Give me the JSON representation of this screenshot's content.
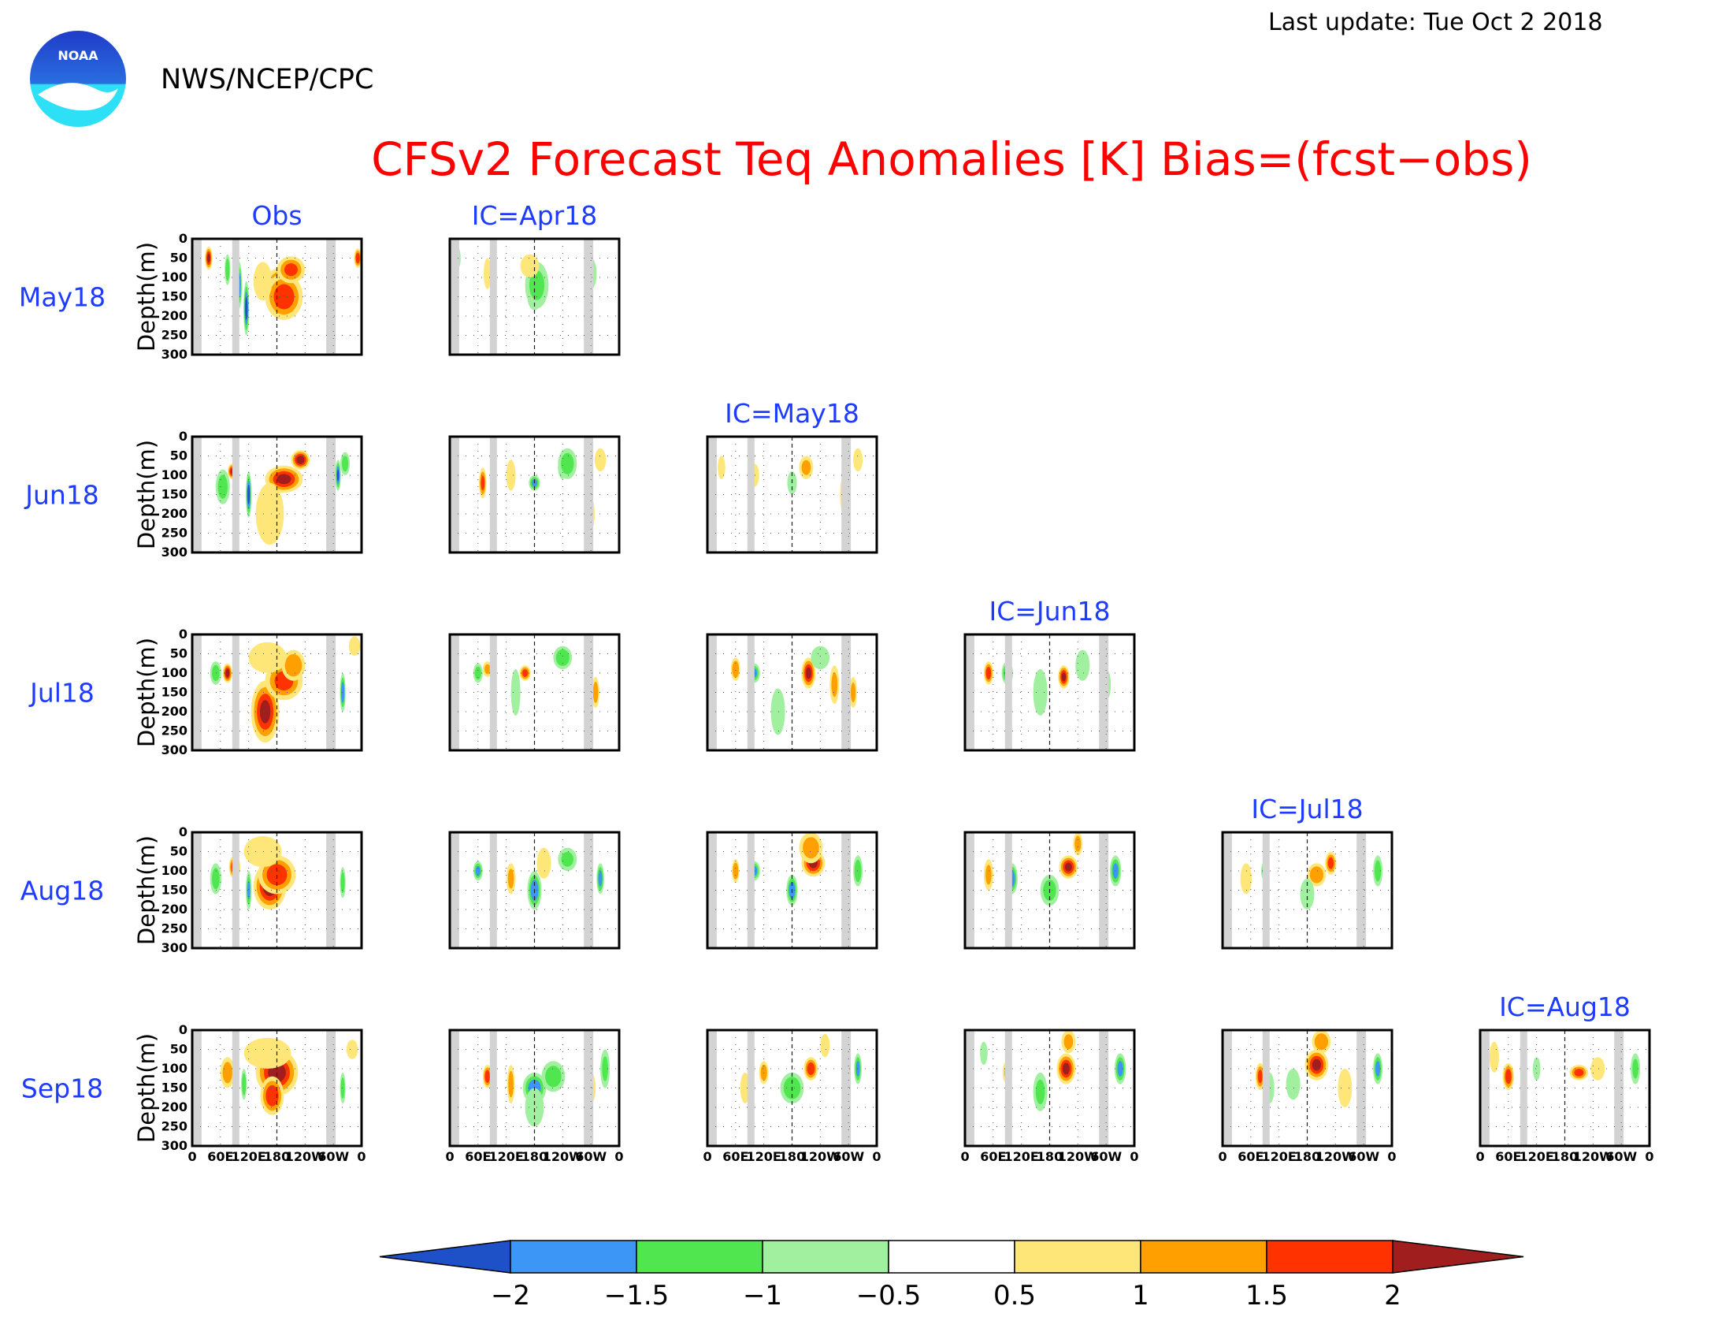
{
  "header": {
    "last_update": "Last update: Tue Oct 2 2018",
    "agency": "NWS/NCEP/CPC",
    "logo_text": "NOAA"
  },
  "colors": {
    "title": "#ff0000",
    "panel_label": "#1e3cff",
    "missing": "#d3d3d3",
    "dotted_grid": "#555555"
  },
  "chart_data": {
    "type": "heatmap",
    "title": "CFSv2 Forecast Teq Anomalies [K] Bias=(fcst−obs)",
    "ylabel": "Depth(m)",
    "xticks": [
      "0",
      "60E",
      "120E",
      "180",
      "120W",
      "60W",
      "0"
    ],
    "yticks": [
      "0",
      "50",
      "100",
      "150",
      "200",
      "250",
      "300"
    ],
    "ylim": [
      0,
      300
    ],
    "row_labels": [
      "May18",
      "Jun18",
      "Jul18",
      "Aug18",
      "Sep18"
    ],
    "column_headers": [
      "Obs",
      "IC=Apr18",
      "IC=May18",
      "IC=Jun18",
      "IC=Jul18",
      "IC=Aug18"
    ],
    "legend": {
      "tick_labels": [
        "−2",
        "−1.5",
        "−1",
        "−0.5",
        "0.5",
        "1",
        "1.5",
        "2"
      ],
      "levels": [
        -2,
        -1.5,
        -1,
        -0.5,
        0.5,
        1,
        1.5,
        2
      ],
      "colors": [
        "#1e50c8",
        "#3c96f5",
        "#50e650",
        "#a0f0a0",
        "#ffffff",
        "#ffe678",
        "#ffa000",
        "#ff3200",
        "#a01e1e"
      ]
    },
    "features": {
      "Obs|May18": [
        [
          185,
          130,
          2.2,
          30,
          55
        ],
        [
          195,
          150,
          1.8,
          40,
          60
        ],
        [
          210,
          80,
          1.5,
          30,
          35
        ],
        [
          100,
          120,
          -1.8,
          6,
          60
        ],
        [
          115,
          180,
          -2.2,
          6,
          70
        ],
        [
          35,
          50,
          2.0,
          8,
          30
        ],
        [
          352,
          50,
          1.8,
          8,
          25
        ],
        [
          75,
          80,
          -1.4,
          6,
          40
        ],
        [
          150,
          110,
          0.9,
          20,
          50
        ]
      ],
      "Obs|Jun18": [
        [
          195,
          110,
          2.0,
          40,
          35
        ],
        [
          230,
          60,
          2.2,
          20,
          25
        ],
        [
          120,
          150,
          -2.2,
          6,
          60
        ],
        [
          85,
          90,
          2.0,
          10,
          20
        ],
        [
          165,
          200,
          0.8,
          30,
          80
        ],
        [
          310,
          100,
          -2.0,
          6,
          40
        ],
        [
          325,
          70,
          -1.2,
          10,
          30
        ],
        [
          65,
          130,
          -1.2,
          15,
          45
        ]
      ],
      "Obs|Jul18": [
        [
          155,
          200,
          2.0,
          30,
          80
        ],
        [
          195,
          120,
          1.6,
          40,
          50
        ],
        [
          215,
          80,
          1.4,
          25,
          40
        ],
        [
          75,
          100,
          2.2,
          10,
          25
        ],
        [
          50,
          100,
          -1.2,
          12,
          30
        ],
        [
          320,
          150,
          -1.8,
          6,
          50
        ],
        [
          160,
          60,
          0.8,
          40,
          40
        ],
        [
          345,
          30,
          0.8,
          12,
          25
        ]
      ],
      "Obs|Aug18": [
        [
          165,
          140,
          2.2,
          35,
          60
        ],
        [
          180,
          110,
          1.8,
          40,
          50
        ],
        [
          90,
          90,
          2.2,
          12,
          30
        ],
        [
          120,
          150,
          -1.5,
          6,
          50
        ],
        [
          50,
          120,
          -1.2,
          12,
          40
        ],
        [
          320,
          130,
          -1.2,
          6,
          40
        ],
        [
          150,
          50,
          0.8,
          40,
          40
        ]
      ],
      "Obs|Sep18": [
        [
          180,
          110,
          2.2,
          45,
          60
        ],
        [
          170,
          170,
          1.8,
          25,
          50
        ],
        [
          75,
          110,
          1.2,
          15,
          40
        ],
        [
          110,
          140,
          -1.4,
          6,
          40
        ],
        [
          320,
          150,
          -1.2,
          6,
          40
        ],
        [
          160,
          60,
          0.9,
          50,
          40
        ],
        [
          340,
          50,
          0.8,
          12,
          25
        ]
      ],
      "IC=Apr18|May18": [
        [
          180,
          150,
          -1.8,
          15,
          35
        ],
        [
          185,
          120,
          -1.0,
          25,
          60
        ],
        [
          80,
          90,
          0.8,
          8,
          40
        ],
        [
          300,
          90,
          -0.8,
          12,
          40
        ],
        [
          170,
          70,
          0.7,
          20,
          30
        ],
        [
          15,
          50,
          -0.8,
          8,
          30
        ]
      ],
      "IC=Apr18|Jun18": [
        [
          180,
          120,
          -1.6,
          12,
          20
        ],
        [
          240,
          80,
          -1.8,
          10,
          30
        ],
        [
          250,
          70,
          -1.2,
          20,
          40
        ],
        [
          70,
          120,
          1.5,
          8,
          40
        ],
        [
          300,
          200,
          0.8,
          8,
          40
        ],
        [
          320,
          60,
          0.9,
          12,
          30
        ],
        [
          130,
          100,
          0.8,
          10,
          40
        ]
      ],
      "IC=Apr18|Jul18": [
        [
          240,
          60,
          -1.4,
          20,
          30
        ],
        [
          160,
          100,
          1.6,
          12,
          20
        ],
        [
          60,
          100,
          -1.2,
          10,
          25
        ],
        [
          310,
          150,
          1.2,
          8,
          40
        ],
        [
          140,
          150,
          -0.8,
          10,
          60
        ],
        [
          80,
          90,
          1.0,
          10,
          20
        ]
      ],
      "IC=Apr18|Aug18": [
        [
          180,
          150,
          -1.8,
          15,
          50
        ],
        [
          60,
          100,
          -1.6,
          10,
          25
        ],
        [
          250,
          70,
          -1.0,
          20,
          30
        ],
        [
          320,
          120,
          -1.6,
          8,
          40
        ],
        [
          130,
          120,
          1.0,
          10,
          40
        ],
        [
          200,
          80,
          0.8,
          15,
          40
        ]
      ],
      "IC=Apr18|Sep18": [
        [
          180,
          150,
          -1.8,
          25,
          40
        ],
        [
          220,
          120,
          -1.2,
          25,
          40
        ],
        [
          80,
          120,
          1.8,
          10,
          30
        ],
        [
          130,
          140,
          1.2,
          8,
          50
        ],
        [
          300,
          150,
          0.8,
          10,
          40
        ],
        [
          330,
          100,
          -1.0,
          10,
          50
        ],
        [
          180,
          200,
          -0.8,
          20,
          50
        ]
      ],
      "IC=May18|Jun18": [
        [
          100,
          100,
          0.7,
          10,
          30
        ],
        [
          180,
          120,
          -0.8,
          10,
          30
        ],
        [
          210,
          80,
          1.0,
          15,
          30
        ],
        [
          290,
          150,
          0.7,
          8,
          50
        ],
        [
          30,
          80,
          0.8,
          8,
          30
        ],
        [
          320,
          60,
          0.7,
          10,
          30
        ]
      ],
      "IC=May18|Jul18": [
        [
          215,
          100,
          2.0,
          15,
          40
        ],
        [
          100,
          100,
          -1.5,
          12,
          25
        ],
        [
          60,
          90,
          1.4,
          10,
          30
        ],
        [
          270,
          130,
          1.0,
          10,
          50
        ],
        [
          240,
          60,
          -0.8,
          20,
          30
        ],
        [
          150,
          200,
          -0.8,
          15,
          60
        ],
        [
          310,
          150,
          1.0,
          8,
          40
        ]
      ],
      "IC=May18|Aug18": [
        [
          225,
          80,
          2.0,
          25,
          35
        ],
        [
          180,
          150,
          -1.8,
          12,
          40
        ],
        [
          100,
          100,
          -1.6,
          12,
          25
        ],
        [
          60,
          100,
          1.4,
          8,
          30
        ],
        [
          320,
          100,
          -1.4,
          10,
          40
        ],
        [
          220,
          40,
          1.2,
          25,
          40
        ]
      ],
      "IC=May18|Sep18": [
        [
          220,
          100,
          1.8,
          15,
          30
        ],
        [
          180,
          150,
          -1.4,
          25,
          40
        ],
        [
          320,
          100,
          -1.6,
          8,
          40
        ],
        [
          120,
          110,
          1.2,
          10,
          30
        ],
        [
          250,
          40,
          0.8,
          10,
          30
        ],
        [
          80,
          150,
          0.8,
          10,
          40
        ]
      ],
      "IC=Jun18|Jul18": [
        [
          210,
          110,
          2.0,
          12,
          30
        ],
        [
          90,
          100,
          -1.8,
          12,
          30
        ],
        [
          50,
          100,
          1.8,
          10,
          30
        ],
        [
          160,
          150,
          -0.8,
          15,
          60
        ],
        [
          250,
          80,
          -0.7,
          15,
          40
        ],
        [
          300,
          130,
          -0.8,
          10,
          40
        ]
      ],
      "IC=Jun18|Aug18": [
        [
          220,
          90,
          2.0,
          20,
          30
        ],
        [
          100,
          120,
          -1.8,
          12,
          40
        ],
        [
          320,
          100,
          -1.6,
          12,
          40
        ],
        [
          180,
          150,
          -1.2,
          20,
          40
        ],
        [
          240,
          30,
          1.2,
          10,
          30
        ],
        [
          50,
          110,
          1.0,
          10,
          40
        ]
      ],
      "IC=Jun18|Sep18": [
        [
          215,
          100,
          2.0,
          20,
          40
        ],
        [
          330,
          100,
          -1.6,
          12,
          40
        ],
        [
          160,
          160,
          -1.0,
          15,
          50
        ],
        [
          90,
          110,
          1.0,
          10,
          30
        ],
        [
          220,
          30,
          1.0,
          15,
          30
        ],
        [
          40,
          60,
          -0.8,
          8,
          30
        ]
      ],
      "IC=Jul18|Aug18": [
        [
          230,
          80,
          1.6,
          12,
          30
        ],
        [
          200,
          110,
          1.4,
          20,
          30
        ],
        [
          90,
          100,
          -1.6,
          8,
          25
        ],
        [
          330,
          100,
          -1.2,
          10,
          40
        ],
        [
          50,
          120,
          0.8,
          12,
          40
        ],
        [
          180,
          160,
          -0.7,
          15,
          40
        ]
      ],
      "IC=Jul18|Sep18": [
        [
          200,
          90,
          2.0,
          25,
          40
        ],
        [
          80,
          120,
          1.6,
          10,
          35
        ],
        [
          330,
          100,
          -1.6,
          10,
          40
        ],
        [
          210,
          30,
          1.4,
          20,
          30
        ],
        [
          260,
          150,
          0.8,
          15,
          50
        ],
        [
          150,
          140,
          -0.8,
          15,
          40
        ],
        [
          100,
          150,
          -0.8,
          10,
          40
        ]
      ],
      "IC=Aug18|Sep18": [
        [
          60,
          120,
          1.8,
          12,
          35
        ],
        [
          210,
          110,
          1.6,
          20,
          20
        ],
        [
          330,
          100,
          -1.0,
          10,
          40
        ],
        [
          250,
          100,
          0.8,
          15,
          30
        ],
        [
          30,
          70,
          0.8,
          10,
          40
        ],
        [
          120,
          100,
          -0.8,
          8,
          30
        ]
      ]
    }
  }
}
